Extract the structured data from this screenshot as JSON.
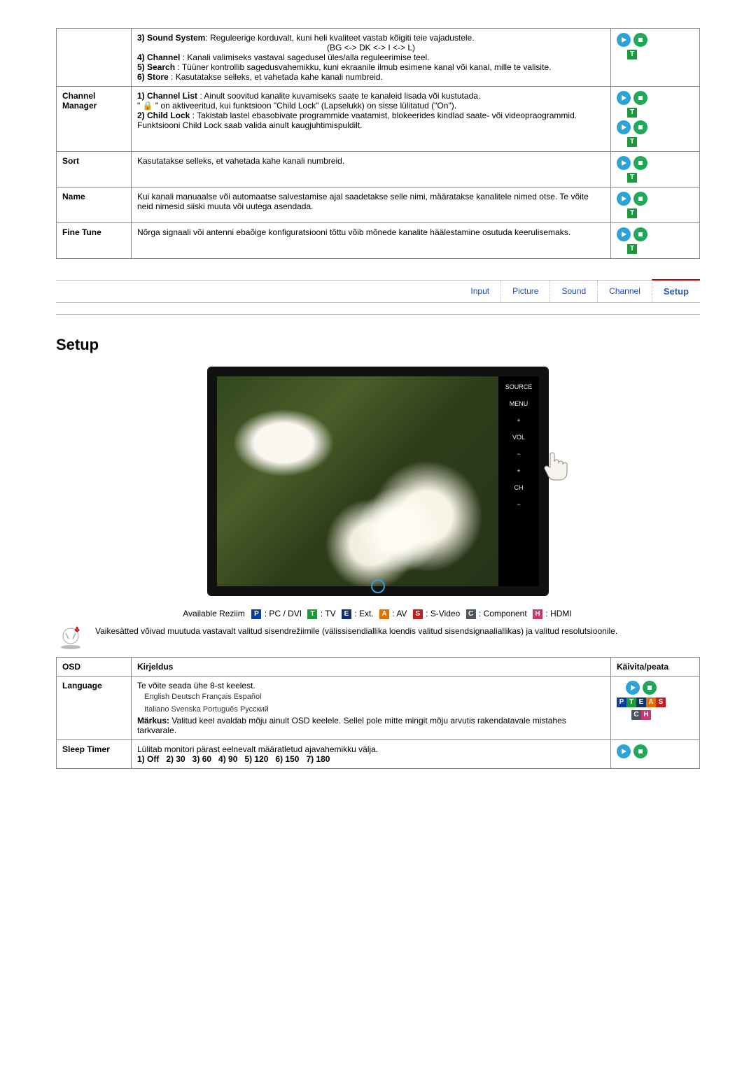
{
  "colors": {
    "play_pill": "#2aa3d8",
    "stop_pill": "#1ea85a",
    "badge_T": "#1a9a3b",
    "badge_P": "#0b3ea5",
    "badge_E": "#10306f",
    "badge_A": "#e07000",
    "badge_S": "#c02020",
    "badge_C": "#4b5560",
    "badge_H": "#cc3673",
    "tab_text": "#1a4fc2",
    "tab_active_border": "#c00"
  },
  "top_table": {
    "rows": [
      {
        "label": "",
        "body": {
          "lines": [
            "<b>3) Sound System</b>: Reguleerige korduvalt, kuni heli kvaliteet vastab kõigiti teie vajadustele.",
            {
              "center": "(BG <-> DK <-> I <-> L)"
            },
            "<b>4) Channel</b> : Kanali valimiseks vastaval sagedusel üles/alla reguleerimise teel.",
            "<b>5) Search</b> : Tüüner kontrollib sagedusvahemikku, kuni ekraanile ilmub esimene kanal või kanal, mille te valisite.",
            "<b>6) Store</b> : Kasutatakse selleks, et vahetada kahe kanali numbreid."
          ]
        },
        "action": {
          "pills": true,
          "modes": [
            "T"
          ]
        }
      },
      {
        "label": "Channel Manager",
        "body": {
          "lines": [
            "<b>1) Channel List</b> : Ainult soovitud kanalite kuvamiseks saate te kanaleid lisada või kustutada.",
            "\" 🔒 \" on aktiveeritud, kui funktsioon \"Child Lock\" (Lapselukk) on sisse lülitatud (\"On\").",
            "<b>2) Child Lock</b> : Takistab lastel ebasobivate programmide vaatamist, blokeerides kindlad saate- või videopraogrammid. Funktsiooni Child Lock saab valida ainult kaugjuhtimispuldilt."
          ]
        },
        "action": {
          "double": true,
          "modes": [
            "T"
          ]
        }
      },
      {
        "label": "Sort",
        "body": {
          "lines": [
            "Kasutatakse selleks, et vahetada kahe kanali numbreid."
          ]
        },
        "action": {
          "pills": true,
          "modes": [
            "T"
          ]
        }
      },
      {
        "label": "Name",
        "body": {
          "lines": [
            "Kui kanali manuaalse või automaatse salvestamise ajal saadetakse selle nimi, määratakse kanalitele nimed otse. Te võite neid nimesid siiski muuta või uutega asendada."
          ]
        },
        "action": {
          "pills": true,
          "modes": [
            "T"
          ]
        }
      },
      {
        "label": "Fine Tune",
        "body": {
          "lines": [
            "Nõrga signaali või antenni ebaõige konfiguratsiooni tõttu võib mõnede kanalite häälestamine osutuda keerulisemaks."
          ]
        },
        "action": {
          "pills": true,
          "modes": [
            "T"
          ]
        }
      }
    ]
  },
  "tabs": [
    {
      "label": "Input",
      "active": false
    },
    {
      "label": "Picture",
      "active": false
    },
    {
      "label": "Sound",
      "active": false
    },
    {
      "label": "Channel",
      "active": false
    },
    {
      "label": "Setup",
      "active": true
    }
  ],
  "section_heading": "Setup",
  "tv": {
    "side_buttons": [
      "SOURCE",
      "MENU",
      "+",
      "VOL",
      "−",
      "+",
      "CH",
      "−"
    ]
  },
  "modes_row": {
    "prefix": "Available Reziim",
    "items": [
      {
        "badge": "P",
        "color": "bg-blue",
        "label": ": PC / DVI"
      },
      {
        "badge": "T",
        "color": "bg-green",
        "label": ": TV"
      },
      {
        "badge": "E",
        "color": "bg-dkblue",
        "label": ": Ext."
      },
      {
        "badge": "A",
        "color": "bg-orange",
        "label": ": AV"
      },
      {
        "badge": "S",
        "color": "bg-red",
        "label": ": S-Video"
      },
      {
        "badge": "C",
        "color": "bg-gray",
        "label": ": Component"
      },
      {
        "badge": "H",
        "color": "bg-pink",
        "label": ": HDMI"
      }
    ]
  },
  "note_text": "Vaikesätted võivad muutuda vastavalt valitud sisendrežiimile (välissisendiallika loendis valitud sisendsignaaliallikas) ja valitud resolutsioonile.",
  "setup_table": {
    "headers": [
      "OSD",
      "Kirjeldus",
      "Käivita/peata"
    ],
    "rows": [
      {
        "label": "Language",
        "body": {
          "intro": "Te võite seada ühe 8-st keelest.",
          "langs_line1": "English Deutsch Français Español",
          "langs_line2": "Italiano Svenska Português Русский",
          "note": "<b>Märkus:</b> Valitud keel avaldab mõju ainult OSD keelele. Sellel pole mitte mingit mõju arvutis rakendatavale mistahes tarkvarale."
        },
        "action": {
          "pills": true,
          "mode_strip": [
            "P",
            "T",
            "E",
            "A",
            "S",
            "C",
            "H"
          ]
        }
      },
      {
        "label": "Sleep Timer",
        "body": {
          "intro": "Lülitab monitori pärast eelnevalt määratletud ajavahemikku välja.",
          "opts": "1) Off   2) 30   3) 60   4) 90   5) 120   6) 150   7) 180"
        },
        "action": {
          "pills": true
        }
      }
    ]
  }
}
